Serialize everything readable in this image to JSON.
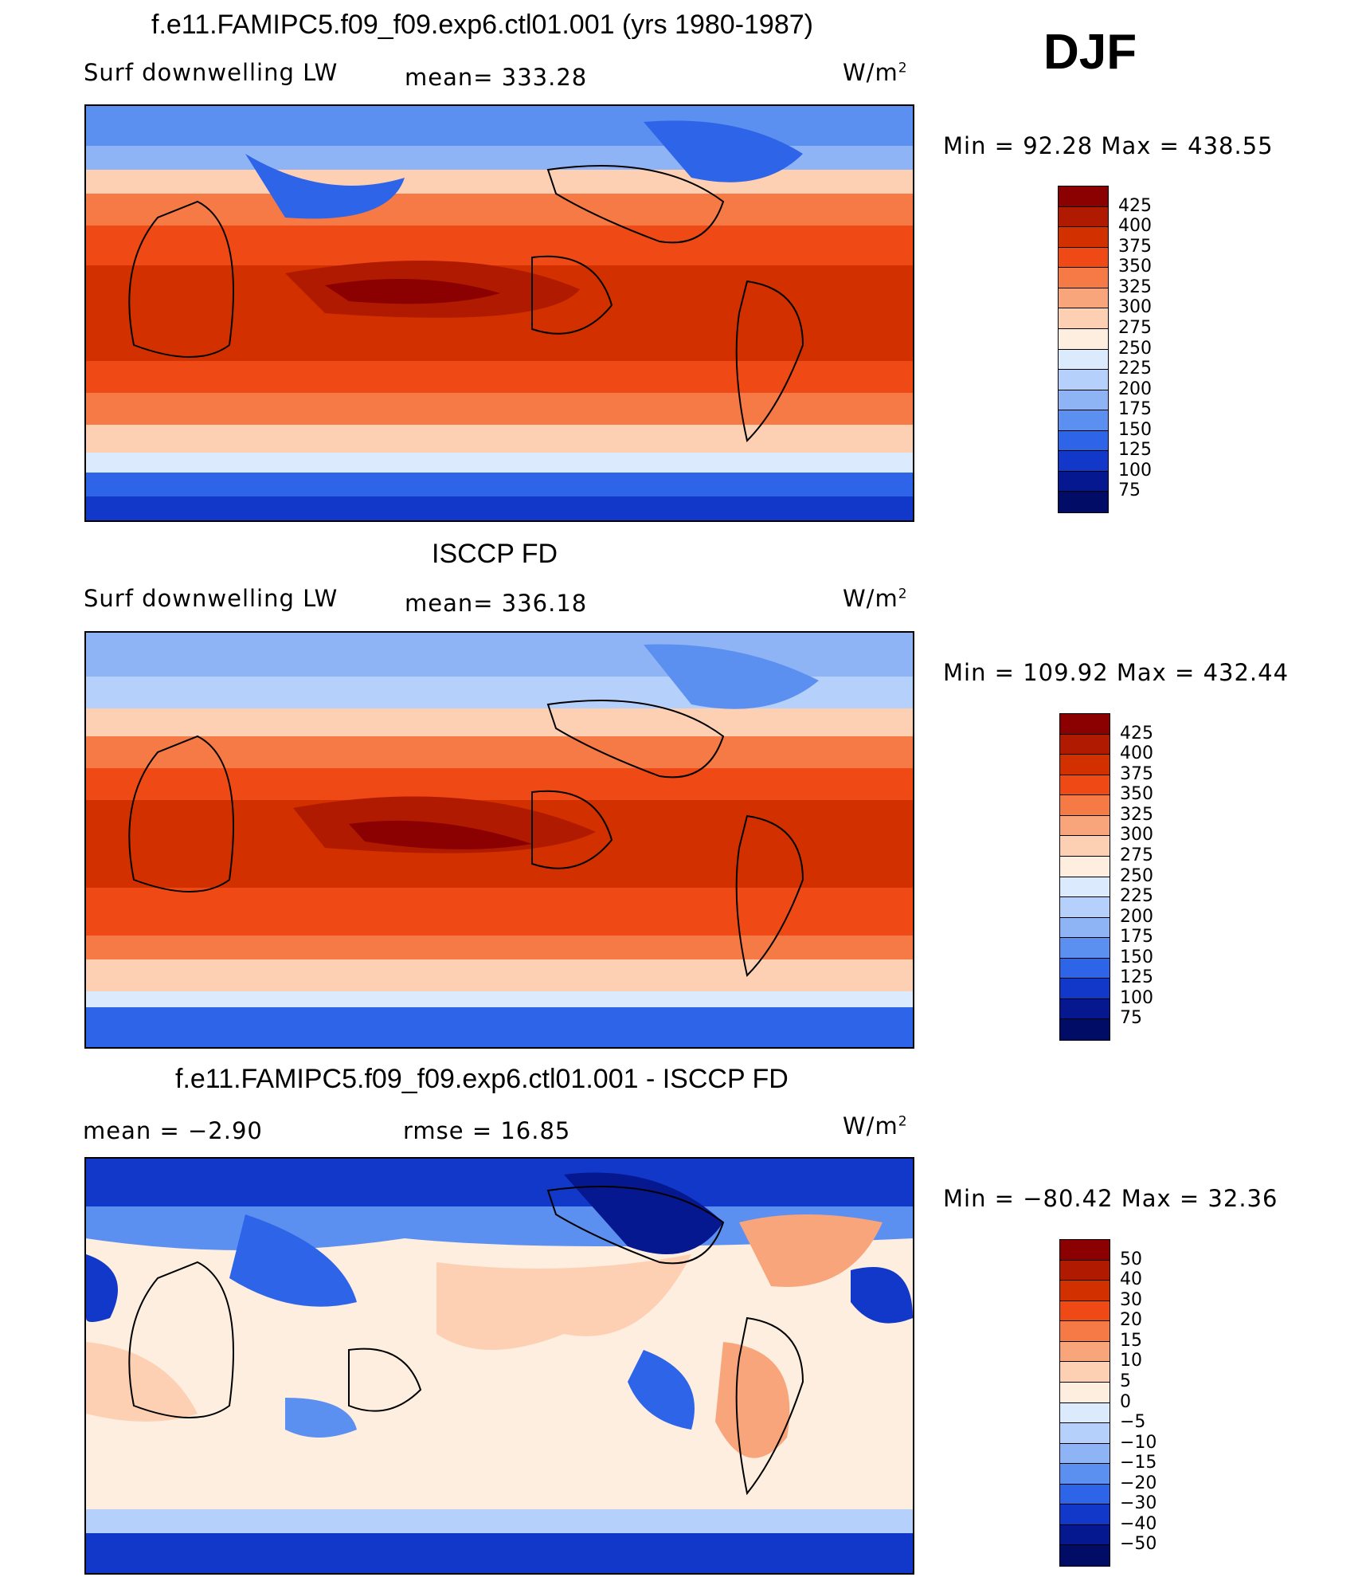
{
  "season": "DJF",
  "panels": [
    {
      "title": "f.e11.FAMIPC5.f09_f09.exp6.ctl01.001 (yrs 1980-1987)",
      "left_label": "Surf  downwelling  LW",
      "center_label": "mean=  333.28",
      "units": "W/m",
      "units_sup": "2",
      "range_text": "Min  =    92.28  Max  =  438.55",
      "colorbar_labels": [
        "425",
        "400",
        "375",
        "350",
        "325",
        "300",
        "275",
        "250",
        "225",
        "200",
        "175",
        "150",
        "125",
        "100",
        "75"
      ],
      "colorbar_colors": [
        "#8b0000",
        "#b01a00",
        "#d33000",
        "#ef4a16",
        "#f57a45",
        "#f9a57c",
        "#fdd0b4",
        "#fdeedf",
        "#dceafd",
        "#b5d1fb",
        "#8fb4f6",
        "#5b8ff0",
        "#2e65e8",
        "#1238c9",
        "#06188f",
        "#000c66"
      ]
    },
    {
      "title": "ISCCP FD",
      "left_label": "Surf  downwelling  LW",
      "center_label": "mean=  336.18",
      "units": "W/m",
      "units_sup": "2",
      "range_text": "Min  =  109.92  Max  =  432.44",
      "colorbar_labels": [
        "425",
        "400",
        "375",
        "350",
        "325",
        "300",
        "275",
        "250",
        "225",
        "200",
        "175",
        "150",
        "125",
        "100",
        "75"
      ],
      "colorbar_colors": [
        "#8b0000",
        "#b01a00",
        "#d33000",
        "#ef4a16",
        "#f57a45",
        "#f9a57c",
        "#fdd0b4",
        "#fdeedf",
        "#dceafd",
        "#b5d1fb",
        "#8fb4f6",
        "#5b8ff0",
        "#2e65e8",
        "#1238c9",
        "#06188f",
        "#000c66"
      ]
    },
    {
      "title": "f.e11.FAMIPC5.f09_f09.exp6.ctl01.001 - ISCCP FD",
      "left_label": "mean  =    −2.90",
      "center_label": "rmse  =    16.85",
      "units": "W/m",
      "units_sup": "2",
      "range_text": "Min  =  −80.42  Max  =    32.36",
      "colorbar_labels": [
        "50",
        "40",
        "30",
        "20",
        "15",
        "10",
        "5",
        "0",
        "−5",
        "−10",
        "−15",
        "−20",
        "−30",
        "−40",
        "−50"
      ],
      "colorbar_colors": [
        "#8b0000",
        "#b01a00",
        "#d33000",
        "#ef4a16",
        "#f57a45",
        "#f9a57c",
        "#fdd0b4",
        "#fdeedf",
        "#dceafd",
        "#b5d1fb",
        "#8fb4f6",
        "#5b8ff0",
        "#2e65e8",
        "#1238c9",
        "#06188f",
        "#000c66"
      ]
    }
  ]
}
